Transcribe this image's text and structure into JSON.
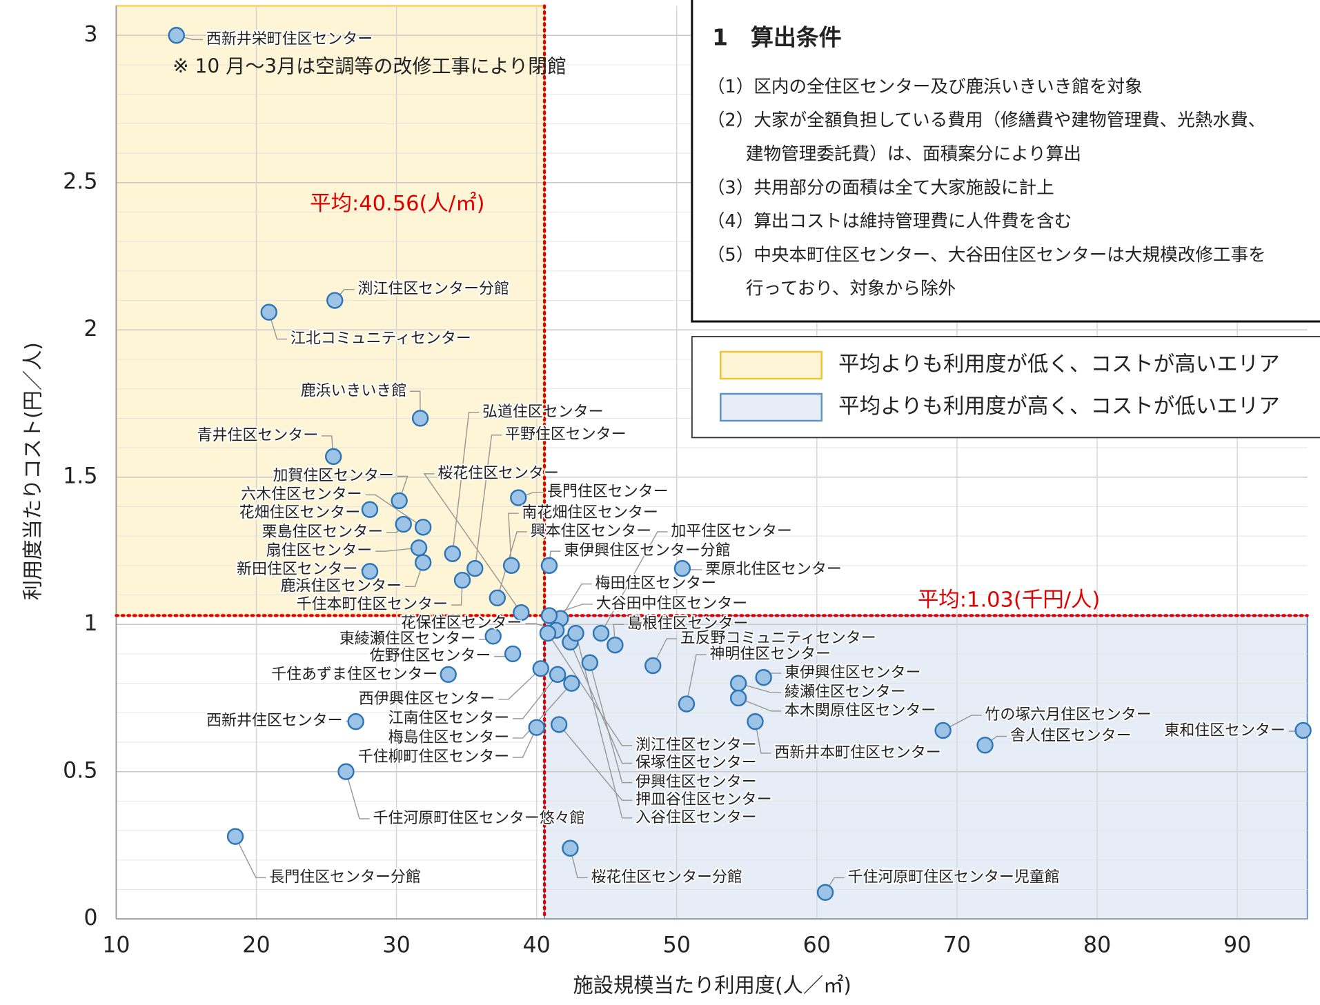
{
  "chart_data": {
    "type": "scatter",
    "x_label": "施設規模当たり利用度(人／㎡)",
    "y_label": "利用度当たりコスト(円／人)",
    "xlim": [
      10,
      95
    ],
    "ylim": [
      0,
      3.1
    ],
    "xticks": [
      10,
      20,
      30,
      40,
      50,
      60,
      70,
      80,
      90
    ],
    "yticks": [
      0,
      0.5,
      1,
      1.5,
      2,
      2.5,
      3
    ],
    "grid": true,
    "color": "#9dc3e6",
    "edge_color": "#2e75b6",
    "labels": [
      "西新井栄町住区センター",
      "渕江住区センター分館",
      "江北コミュニティセンター",
      "鹿浜いきいき館",
      "青井住区センター",
      "加賀住区センター",
      "六木住区センター",
      "花畑住区センター",
      "栗島住区センター",
      "扇住区センター",
      "新田住区センター",
      "鹿浜住区センター",
      "千住本町住区センター",
      "弘道住区センター",
      "平野住区センター",
      "長門住区センター",
      "南花畑住区センター",
      "興本住区センター",
      "東伊興住区センター分館",
      "桜花住区センター",
      "梅田住区センター",
      "大谷田中住区センター",
      "加平住区センター",
      "島根住区センター",
      "五反野コミュニティセンター",
      "栗原北住区センター",
      "神明住区センター",
      "東伊興住区センター",
      "綾瀬住区センター",
      "本木関原住区センター",
      "西新井本町住区センター",
      "竹の塚六月住区センター",
      "舎人住区センター",
      "東和住区センター",
      "千住河原町住区センター児童館",
      "桜花住区センター分館",
      "長門住区センター分館",
      "千住河原町住区センター悠々館",
      "西新井住区センター",
      "千住あずま住区センター",
      "佐野住区センター",
      "東綾瀬住区センター",
      "花保住区センター",
      "西伊興住区センター",
      "江南住区センター",
      "梅島住区センター",
      "千住柳町住区センター",
      "渕江住区センター",
      "保塚住区センター",
      "伊興住区センター",
      "押皿谷住区センター",
      "入谷住区センター"
    ],
    "x": [
      14.3,
      25.6,
      20.9,
      31.7,
      25.5,
      30.2,
      31.9,
      28.1,
      30.5,
      31.6,
      28.1,
      31.9,
      34.7,
      34.0,
      35.6,
      38.7,
      38.2,
      37.2,
      40.9,
      38.9,
      41.7,
      40.9,
      44.6,
      45.6,
      48.3,
      50.4,
      50.7,
      56.2,
      54.4,
      54.4,
      55.6,
      69.0,
      72.0,
      94.7,
      60.6,
      42.4,
      18.5,
      26.4,
      27.1,
      33.7,
      38.3,
      36.9,
      41.4,
      40.3,
      41.5,
      42.5,
      40.0,
      40.8,
      42.4,
      43.8,
      41.6,
      42.8
    ],
    "values": [
      3.0,
      2.1,
      2.06,
      1.7,
      1.57,
      1.42,
      1.33,
      1.39,
      1.34,
      1.26,
      1.18,
      1.21,
      1.15,
      1.24,
      1.19,
      1.43,
      1.2,
      1.09,
      1.2,
      1.04,
      1.02,
      1.03,
      0.97,
      0.93,
      0.86,
      1.19,
      0.73,
      0.82,
      0.8,
      0.75,
      0.67,
      0.64,
      0.59,
      0.64,
      0.09,
      0.24,
      0.28,
      0.5,
      0.67,
      0.83,
      0.9,
      0.96,
      0.98,
      0.85,
      0.83,
      0.8,
      0.65,
      0.97,
      0.94,
      0.87,
      0.66,
      0.97
    ],
    "annotation": "※ 10 月～3月は空調等の改修工事により閉館",
    "averages": {
      "x": 40.56,
      "y": 1.03,
      "x_label": "平均:40.56(人/㎡)",
      "y_label": "平均:1.03(千円/人)",
      "color": "#e00000"
    },
    "areas": [
      {
        "name": "平均よりも利用度が低く、コストが高いエリア",
        "color": "#fdf5d6",
        "edge": "#f2c12e"
      },
      {
        "name": "平均よりも利用度が高く、コストが低いエリア",
        "color": "#e6edf6",
        "edge": "#5b8fc9"
      }
    ]
  },
  "notes": {
    "title": "1　算出条件",
    "items": [
      [
        "（1）区内の全住区センター及び鹿浜いきいき館を対象"
      ],
      [
        "（2）大家が全額負担している費用（修繕費や建物管理費、光熱水費、",
        "建物管理委託費）は、面積案分により算出"
      ],
      [
        "（3）共用部分の面積は全て大家施設に計上"
      ],
      [
        "（4）算出コストは維持管理費に人件費を含む"
      ],
      [
        "（5）中央本町住区センター、大谷田住区センターは大規模改修工事を",
        "行っており、対象から除外"
      ]
    ]
  }
}
